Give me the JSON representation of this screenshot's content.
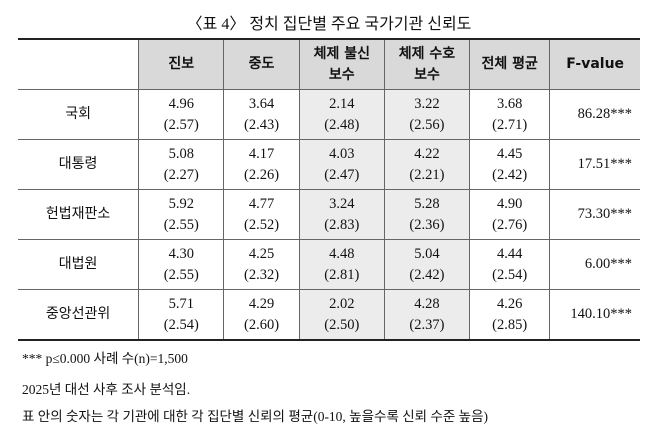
{
  "header": {
    "title": "〈표 4〉 정치 집단별 주요 국가기관 신뢰도"
  },
  "table": {
    "columns": [
      [
        "진보"
      ],
      [
        "중도"
      ],
      [
        "체제 불신",
        "보수"
      ],
      [
        "체제 수호",
        "보수"
      ],
      [
        "전체 평균"
      ],
      [
        "F-value"
      ]
    ],
    "rows": [
      {
        "label": "국회",
        "cells": [
          [
            "4.96",
            "(2.57)"
          ],
          [
            "3.64",
            "(2.43)"
          ],
          [
            "2.14",
            "(2.48)"
          ],
          [
            "3.22",
            "(2.56)"
          ],
          [
            "3.68",
            "(2.71)"
          ]
        ],
        "f": "86.28***"
      },
      {
        "label": "대통령",
        "cells": [
          [
            "5.08",
            "(2.27)"
          ],
          [
            "4.17",
            "(2.26)"
          ],
          [
            "4.03",
            "(2.47)"
          ],
          [
            "4.22",
            "(2.21)"
          ],
          [
            "4.45",
            "(2.42)"
          ]
        ],
        "f": "17.51***"
      },
      {
        "label": "헌법재판소",
        "cells": [
          [
            "5.92",
            "(2.55)"
          ],
          [
            "4.77",
            "(2.52)"
          ],
          [
            "3.24",
            "(2.83)"
          ],
          [
            "5.28",
            "(2.36)"
          ],
          [
            "4.90",
            "(2.76)"
          ]
        ],
        "f": "73.30***"
      },
      {
        "label": "대법원",
        "cells": [
          [
            "4.30",
            "(2.55)"
          ],
          [
            "4.25",
            "(2.32)"
          ],
          [
            "4.48",
            "(2.81)"
          ],
          [
            "5.04",
            "(2.42)"
          ],
          [
            "4.44",
            "(2.54)"
          ]
        ],
        "f": "6.00***"
      },
      {
        "label": "중앙선관위",
        "cells": [
          [
            "5.71",
            "(2.54)"
          ],
          [
            "4.29",
            "(2.60)"
          ],
          [
            "2.02",
            "(2.50)"
          ],
          [
            "4.28",
            "(2.37)"
          ],
          [
            "4.26",
            "(2.85)"
          ]
        ],
        "f": "140.10***"
      }
    ]
  },
  "notes": [
    "*** p≤0.000 사례 수(n)=1,500",
    "2025년 대선 사후 조사 분석임.",
    "표 안의 숫자는 각 기관에 대한 각 집단별 신뢰의 평균(0-10, 높을수록 신뢰 수준 높음)"
  ]
}
